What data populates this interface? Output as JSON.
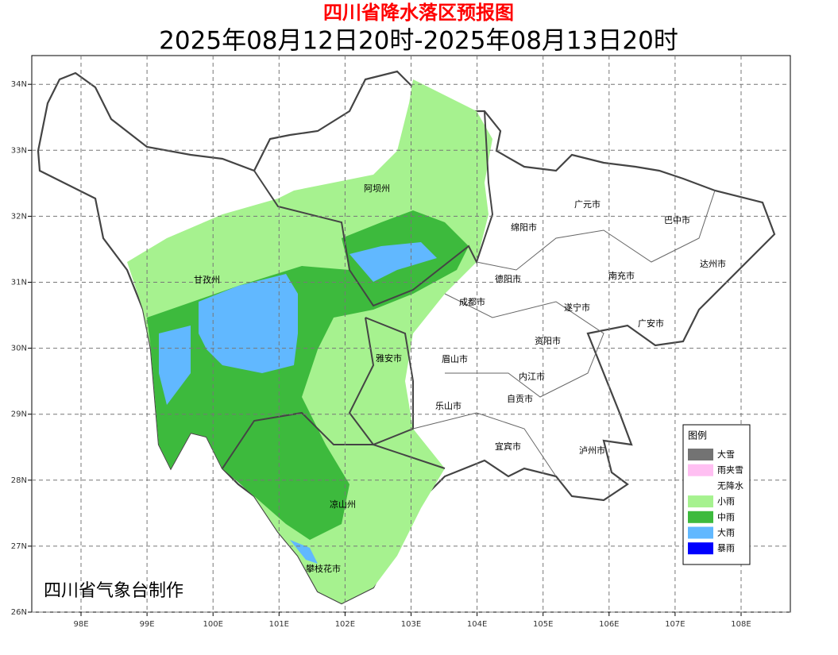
{
  "header": {
    "title": "四川省降水落区预报图",
    "subtitle": "2025年08月12日20时-2025年08月13日20时"
  },
  "axes": {
    "x_labels": [
      "98E",
      "99E",
      "100E",
      "101E",
      "102E",
      "103E",
      "104E",
      "105E",
      "106E",
      "107E",
      "108E"
    ],
    "y_labels": [
      "26N",
      "27N",
      "28N",
      "29N",
      "30N",
      "31N",
      "32N",
      "33N",
      "34N"
    ]
  },
  "places": [
    "阿坝州",
    "广元市",
    "巴中市",
    "绵阳市",
    "甘孜州",
    "德阳市",
    "南充市",
    "达州市",
    "成都市",
    "遂宁市",
    "广安市",
    "资阳市",
    "雅安市",
    "眉山市",
    "内江市",
    "自贡市",
    "乐山市",
    "宜宾市",
    "泸州市",
    "凉山州",
    "攀枝花市"
  ],
  "legend": {
    "title": "图例",
    "items": [
      {
        "label": "大雪",
        "color": "#737373"
      },
      {
        "label": "雨夹雪",
        "color": "#ffbff2"
      },
      {
        "label": "无降水",
        "color": "#ffffff"
      },
      {
        "label": "小雨",
        "color": "#a6f28f"
      },
      {
        "label": "中雨",
        "color": "#3dba3d"
      },
      {
        "label": "大雨",
        "color": "#61b8ff"
      },
      {
        "label": "暴雨",
        "color": "#0000fe"
      }
    ]
  },
  "credit": "四川省气象台制作"
}
